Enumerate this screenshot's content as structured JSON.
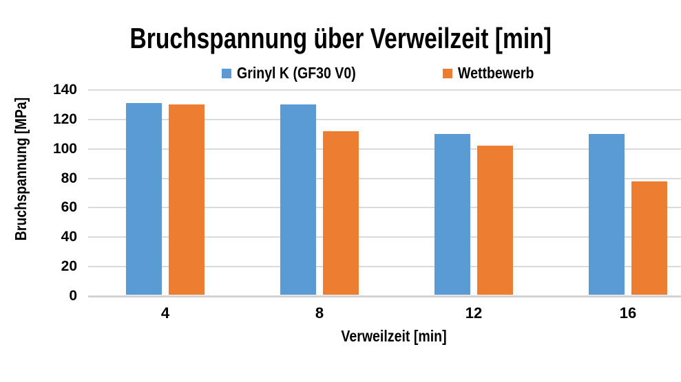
{
  "chart_data": {
    "type": "bar",
    "title": "Bruchspannung über Verweilzeit [min]",
    "xlabel": "Verweilzeit [min]",
    "ylabel": "Bruchspannung [MPa]",
    "categories": [
      "4",
      "8",
      "12",
      "16"
    ],
    "series": [
      {
        "name": "Grinyl K (GF30 V0)",
        "color": "#5B9BD5",
        "values": [
          131,
          130,
          110,
          110
        ]
      },
      {
        "name": "Wettbewerb",
        "color": "#ED7D31",
        "values": [
          130,
          112,
          102,
          78
        ]
      }
    ],
    "ylim": [
      0,
      140
    ],
    "yticks": [
      0,
      20,
      40,
      60,
      80,
      100,
      120,
      140
    ],
    "ytick_step": 20,
    "unit": "MPa",
    "grid": true,
    "legend_position": "top",
    "colors": {
      "series1": "#5B9BD5",
      "series2": "#ED7D31",
      "gridline": "#D9D9D9",
      "axis_line": "#D2D2D2",
      "text": "#000000",
      "background": "#FFFFFF"
    }
  }
}
